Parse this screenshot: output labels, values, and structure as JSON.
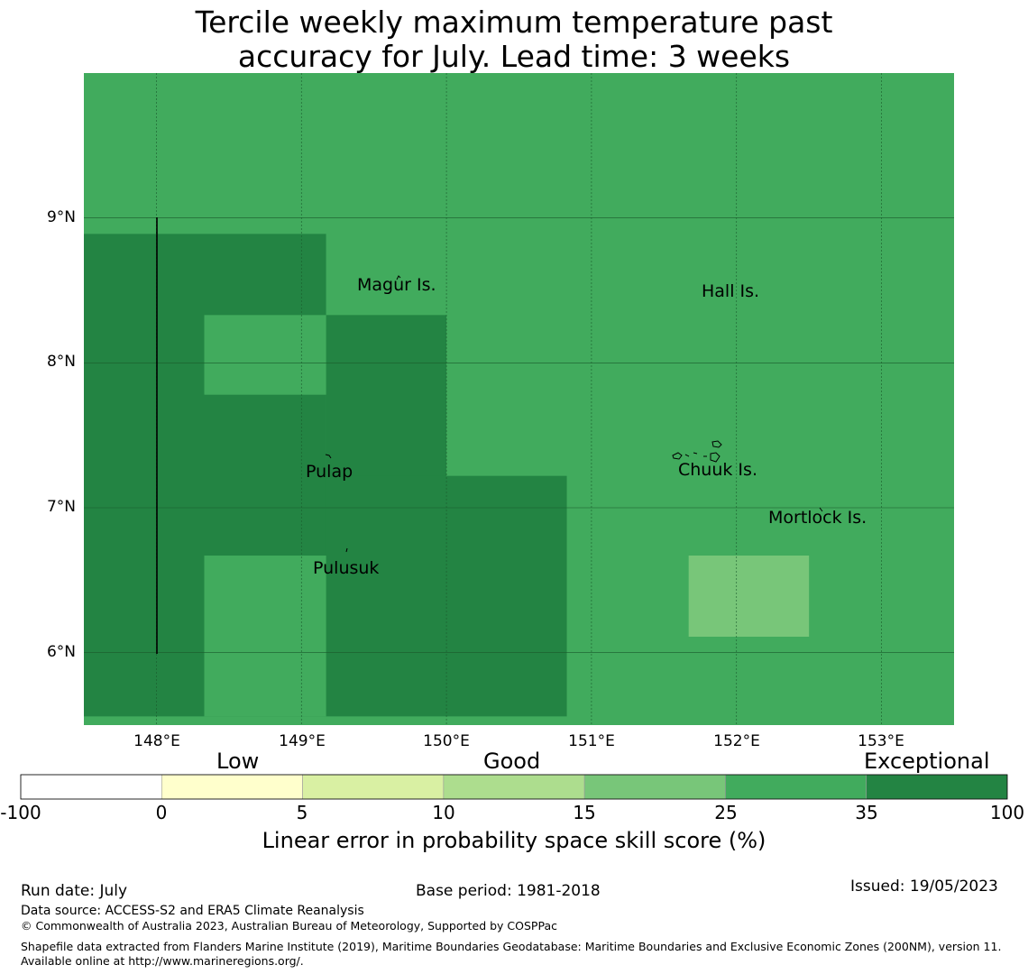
{
  "title_line1": "Tercile weekly maximum temperature past",
  "title_line2": "accuracy for July. Lead time: 3 weeks",
  "colors": {
    "band_0_5": "#ffffcc",
    "band_5_10": "#d9f0a3",
    "band_10_15": "#addd8e",
    "band_15_25": "#78c679",
    "band_25_35": "#41ab5d",
    "band_35_100": "#238443",
    "below_0": "#ffffff"
  },
  "map": {
    "lon_labels": [
      "148°E",
      "149°E",
      "150°E",
      "151°E",
      "152°E",
      "153°E"
    ],
    "lat_labels": [
      "9°N",
      "8°N",
      "7°N",
      "6°N"
    ],
    "place_labels": [
      "Magur Is.",
      "Hall Is.",
      "Pulap",
      "Chuuk Is.",
      "Mortlock Is.",
      "Pulusuk"
    ],
    "grid_cells": [
      {
        "lon_min": 147.5,
        "lon_max": 153.5,
        "lat_min": 5.5,
        "lat_max": 10.0,
        "skill_band": "25-35"
      },
      {
        "lon_min": 147.5,
        "lon_max": 149.17,
        "lat_min": 5.56,
        "lat_max": 8.89,
        "skill_band": "35-100"
      },
      {
        "lon_min": 149.17,
        "lon_max": 150.0,
        "lat_min": 6.67,
        "lat_max": 8.33,
        "skill_band": "35-100"
      },
      {
        "lon_min": 149.17,
        "lon_max": 150.83,
        "lat_min": 5.56,
        "lat_max": 7.22,
        "skill_band": "35-100"
      },
      {
        "lon_min": 148.33,
        "lon_max": 149.17,
        "lat_min": 7.78,
        "lat_max": 8.33,
        "skill_band": "25-35"
      },
      {
        "lon_min": 148.33,
        "lon_max": 149.17,
        "lat_min": 5.56,
        "lat_max": 6.67,
        "skill_band": "25-35"
      },
      {
        "lon_min": 151.67,
        "lon_max": 152.5,
        "lat_min": 6.11,
        "lat_max": 6.67,
        "skill_band": "15-25"
      }
    ]
  },
  "colorbar": {
    "categories": [
      "Low",
      "Good",
      "Exceptional"
    ],
    "ticks": [
      "-100",
      "0",
      "5",
      "10",
      "15",
      "25",
      "35",
      "100"
    ],
    "label": "Linear error in probability space skill score (%)"
  },
  "footer": {
    "run_date": "Run date: July",
    "base_period": "Base period: 1981-2018",
    "issued": "Issued: 19/05/2023",
    "data_source": "Data source: ACCESS-S2 and ERA5 Climate Reanalysis",
    "copyright": "© Commonwealth of Australia 2023, Australian Bureau of Meteorology, Supported by COSPPac",
    "shapefile": "Shapefile data extracted from Flanders Marine Institute (2019), Maritime Boundaries Geodatabase: Maritime Boundaries and Exclusive Economic Zones (200NM), version 11. Available online at http://www.marineregions.org/."
  }
}
